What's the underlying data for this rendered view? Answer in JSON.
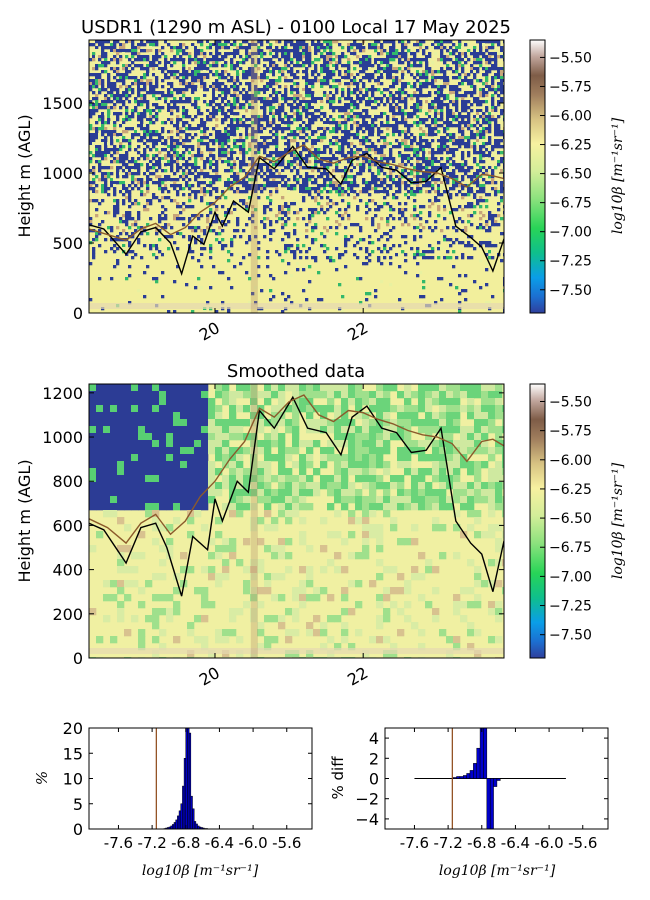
{
  "figure": {
    "title": "USDR1 (1290 m ASL) - 0100 Local 17 May 2025",
    "subtitle": "Smoothed data"
  },
  "chart_data": [
    {
      "type": "heatmap",
      "title": "USDR1 (1290 m ASL) - 0100 Local 17 May 2025",
      "xlabel": "",
      "ylabel": "Height m (AGL)",
      "xlim": [
        18.3,
        23.9
      ],
      "ylim": [
        0,
        1950
      ],
      "x_ticks": [
        20,
        22
      ],
      "x_tick_labels": [
        "20",
        "22"
      ],
      "y_ticks": [
        0,
        500,
        1000,
        1500
      ],
      "y_tick_labels": [
        "0",
        "500",
        "1000",
        "1500"
      ],
      "colorbar": {
        "label": "log10β [m⁻¹sr⁻¹]",
        "range": [
          -7.7,
          -5.35
        ],
        "ticks": [
          -5.5,
          -5.75,
          -6.0,
          -6.25,
          -6.5,
          -6.75,
          -7.0,
          -7.25,
          -7.5
        ],
        "tick_labels": [
          "−5.50",
          "−5.75",
          "−6.00",
          "−6.25",
          "−6.50",
          "−6.75",
          "−7.00",
          "−7.25",
          "−7.50"
        ]
      },
      "series": [
        {
          "color": "#000000",
          "x": [
            18.3,
            18.5,
            18.8,
            19.0,
            19.2,
            19.4,
            19.55,
            19.7,
            19.85,
            20.0,
            20.1,
            20.25,
            20.45,
            20.6,
            20.8,
            21.05,
            21.25,
            21.5,
            21.7,
            21.85,
            22.05,
            22.25,
            22.45,
            22.65,
            22.85,
            23.05,
            23.25,
            23.45,
            23.6,
            23.75,
            23.9
          ],
          "y": [
            630,
            600,
            420,
            580,
            610,
            500,
            280,
            550,
            490,
            720,
            620,
            800,
            720,
            1110,
            1030,
            1190,
            1040,
            1030,
            920,
            1090,
            1140,
            1040,
            1020,
            930,
            940,
            1040,
            620,
            540,
            470,
            300,
            530
          ]
        },
        {
          "color": "#8b5a2b",
          "x": [
            18.3,
            18.55,
            18.8,
            19.0,
            19.2,
            19.4,
            19.6,
            19.8,
            20.0,
            20.2,
            20.4,
            20.6,
            20.8,
            21.0,
            21.2,
            21.4,
            21.6,
            21.8,
            22.0,
            22.2,
            22.4,
            22.6,
            22.8,
            23.0,
            23.2,
            23.4,
            23.6,
            23.75,
            23.9
          ],
          "y": [
            600,
            560,
            520,
            600,
            640,
            560,
            610,
            720,
            790,
            900,
            970,
            1120,
            1080,
            1150,
            1200,
            1100,
            1070,
            1110,
            1120,
            1080,
            1060,
            1030,
            1010,
            1000,
            960,
            900,
            990,
            980,
            960
          ]
        }
      ]
    },
    {
      "type": "heatmap",
      "title": "Smoothed data",
      "xlabel": "",
      "ylabel": "Height m (AGL)",
      "xlim": [
        18.3,
        23.9
      ],
      "ylim": [
        0,
        1240
      ],
      "x_ticks": [
        20,
        22
      ],
      "x_tick_labels": [
        "20",
        "22"
      ],
      "y_ticks": [
        0,
        200,
        400,
        600,
        800,
        1000,
        1200
      ],
      "y_tick_labels": [
        "0",
        "200",
        "400",
        "600",
        "800",
        "1000",
        "1200"
      ],
      "colorbar": {
        "label": "log10β [m⁻¹sr⁻¹]",
        "range": [
          -7.7,
          -5.35
        ],
        "ticks": [
          -5.5,
          -5.75,
          -6.0,
          -6.25,
          -6.5,
          -6.75,
          -7.0,
          -7.25,
          -7.5
        ],
        "tick_labels": [
          "−5.50",
          "−5.75",
          "−6.00",
          "−6.25",
          "−6.50",
          "−6.75",
          "−7.00",
          "−7.25",
          "−7.50"
        ]
      },
      "series": [
        {
          "color": "#000000",
          "x": [
            18.3,
            18.5,
            18.8,
            19.0,
            19.2,
            19.35,
            19.55,
            19.7,
            19.9,
            20.0,
            20.1,
            20.3,
            20.45,
            20.6,
            20.8,
            21.05,
            21.25,
            21.5,
            21.7,
            21.85,
            22.05,
            22.25,
            22.45,
            22.65,
            22.85,
            23.05,
            23.25,
            23.45,
            23.6,
            23.75,
            23.9
          ],
          "y": [
            610,
            580,
            430,
            590,
            610,
            500,
            280,
            550,
            490,
            720,
            620,
            800,
            750,
            1120,
            1040,
            1180,
            1040,
            1020,
            920,
            1090,
            1140,
            1040,
            1020,
            930,
            940,
            1040,
            620,
            520,
            470,
            300,
            530
          ]
        },
        {
          "color": "#8b5a2b",
          "x": [
            18.3,
            18.55,
            18.8,
            19.0,
            19.2,
            19.4,
            19.6,
            19.8,
            20.0,
            20.2,
            20.4,
            20.6,
            20.8,
            21.0,
            21.2,
            21.4,
            21.6,
            21.8,
            22.0,
            22.2,
            22.4,
            22.6,
            22.8,
            23.0,
            23.2,
            23.4,
            23.6,
            23.75,
            23.9
          ],
          "y": [
            630,
            590,
            520,
            610,
            650,
            560,
            620,
            730,
            800,
            900,
            980,
            1130,
            1090,
            1160,
            1190,
            1100,
            1070,
            1120,
            1110,
            1080,
            1060,
            1030,
            1010,
            1000,
            970,
            890,
            980,
            990,
            960
          ]
        }
      ]
    },
    {
      "type": "bar",
      "xlabel": "log10β [m⁻¹sr⁻¹]",
      "ylabel": "%",
      "xlim": [
        -7.95,
        -5.3
      ],
      "ylim": [
        0,
        20
      ],
      "x_tick_labels": [
        "-7.6",
        "-7.2",
        "-6.8",
        "-6.4",
        "-6.0",
        "-5.6"
      ],
      "y_tick_labels": [
        "0",
        "5",
        "10",
        "15",
        "20"
      ],
      "vline": -7.15,
      "bin_width": 0.02,
      "x": [
        -7.05,
        -7.03,
        -7.01,
        -6.99,
        -6.97,
        -6.95,
        -6.93,
        -6.91,
        -6.89,
        -6.87,
        -6.85,
        -6.83,
        -6.81,
        -6.79,
        -6.77,
        -6.75,
        -6.73,
        -6.71,
        -6.69,
        -6.67,
        -6.65,
        -6.63,
        -6.61,
        -6.59,
        -6.57,
        -6.55
      ],
      "values": [
        0.1,
        0.2,
        0.3,
        0.4,
        0.6,
        0.9,
        1.3,
        1.8,
        2.6,
        3.6,
        5.0,
        8.5,
        14.0,
        20.0,
        20.0,
        19.0,
        6.5,
        4.0,
        1.5,
        1.0,
        0.6,
        0.4,
        0.3,
        0.2,
        0.1,
        0.1
      ]
    },
    {
      "type": "bar",
      "xlabel": "log10β [m⁻¹sr⁻¹]",
      "ylabel": "% diff",
      "xlim": [
        -7.95,
        -5.3
      ],
      "ylim": [
        -5,
        5
      ],
      "x_tick_labels": [
        "-7.6",
        "-7.2",
        "-6.8",
        "-6.4",
        "-6.0",
        "-5.6"
      ],
      "y_tick_labels": [
        "4",
        "2",
        "0",
        "−2",
        "−4"
      ],
      "vline": -7.15,
      "bin_width": 0.04,
      "zero_line": [
        -7.6,
        -5.8
      ],
      "x": [
        -7.12,
        -7.08,
        -7.04,
        -7.0,
        -6.96,
        -6.92,
        -6.88,
        -6.84,
        -6.8,
        -6.76,
        -6.72,
        -6.68,
        -6.64,
        -6.6
      ],
      "values": [
        0.1,
        0.2,
        0.2,
        0.3,
        0.5,
        0.8,
        1.5,
        3.0,
        5.0,
        5.0,
        -5.0,
        -5.0,
        -0.8,
        -0.2
      ]
    }
  ]
}
